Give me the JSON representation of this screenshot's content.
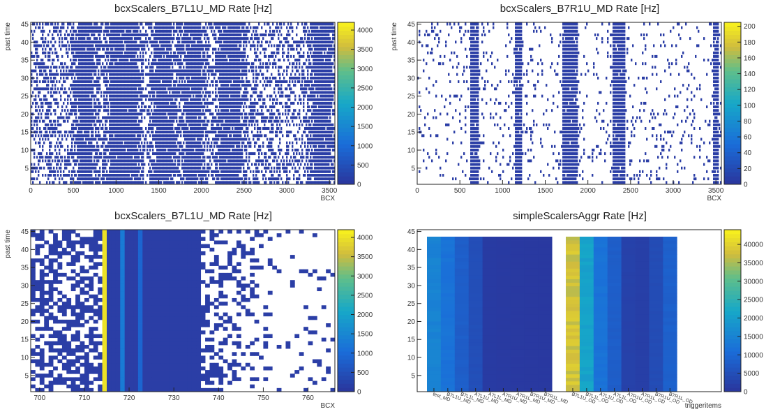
{
  "chart_data": [
    {
      "type": "heatmap",
      "title": "bcxScalers_B7L1U_MD Rate [Hz]",
      "xlabel": "BCX",
      "ylabel": "past time",
      "xlim": [
        0,
        3564
      ],
      "ylim": [
        1,
        45
      ],
      "x_ticks": [
        0,
        500,
        1000,
        1500,
        2000,
        2500,
        3000,
        3500
      ],
      "y_ticks": [
        5,
        10,
        15,
        20,
        25,
        30,
        35,
        40,
        45
      ],
      "z_ticks": [
        0,
        500,
        1000,
        1500,
        2000,
        2500,
        3000,
        3500,
        4000
      ],
      "zlim": [
        0,
        4200
      ],
      "filled_bcx_bands": [
        [
          560,
          720
        ],
        [
          930,
          1240
        ],
        [
          1470,
          1650
        ],
        [
          1820,
          2000
        ],
        [
          2230,
          2450
        ],
        [
          3320,
          3520
        ]
      ],
      "background_occupancy": 0.45
    },
    {
      "type": "heatmap",
      "title": "bcxScalers_B7R1U_MD Rate [Hz]",
      "xlabel": "BCX",
      "ylabel": "past time",
      "xlim": [
        0,
        3564
      ],
      "ylim": [
        1,
        45
      ],
      "x_ticks": [
        0,
        500,
        1000,
        1500,
        2000,
        2500,
        3000,
        3500
      ],
      "y_ticks": [
        5,
        10,
        15,
        20,
        25,
        30,
        35,
        40,
        45
      ],
      "z_ticks": [
        0,
        20,
        40,
        60,
        80,
        100,
        120,
        140,
        160,
        180,
        200
      ],
      "zlim": [
        0,
        205
      ],
      "filled_bcx_bands": [
        [
          620,
          720
        ],
        [
          1150,
          1230
        ],
        [
          1700,
          1880
        ],
        [
          2290,
          2440
        ],
        [
          3460,
          3530
        ]
      ],
      "background_occupancy": 0.08
    },
    {
      "type": "heatmap",
      "title": "bcxScalers_B7L1U_MD Rate [Hz]",
      "xlabel": "BCX",
      "ylabel": "past time",
      "xlim": [
        698,
        766
      ],
      "ylim": [
        1,
        45
      ],
      "x_ticks": [
        700,
        710,
        720,
        730,
        740,
        750,
        760
      ],
      "y_ticks": [
        5,
        10,
        15,
        20,
        25,
        30,
        35,
        40,
        45
      ],
      "z_ticks": [
        0,
        500,
        1000,
        1500,
        2000,
        2500,
        3000,
        3500,
        4000
      ],
      "zlim": [
        0,
        4200
      ],
      "hot_columns": [
        {
          "bcx": 714,
          "value": 4000
        },
        {
          "bcx": 718,
          "value": 1300
        },
        {
          "bcx": 722,
          "value": 900
        }
      ],
      "solid_range": [
        714,
        735
      ]
    },
    {
      "type": "heatmap",
      "title": "simpleScalersAggr Rate [Hz]",
      "xlabel": "triggeritems",
      "ylabel": "",
      "ylim": [
        1,
        45
      ],
      "y_ticks": [
        5,
        10,
        15,
        20,
        25,
        30,
        35,
        40,
        45
      ],
      "z_ticks": [
        0,
        5000,
        10000,
        15000,
        20000,
        25000,
        30000,
        35000,
        40000
      ],
      "zlim": [
        0,
        44000
      ],
      "categories": [
        "test_MD",
        "B7L1U_MD",
        "B7L1L_MD",
        "A7L1U_MD",
        "A7L1L_MD",
        "A7R1U_MD",
        "A7R1L_MD",
        "B7R1U_MD",
        "B7R1L_MD",
        "",
        "B7L1U_OD",
        "B7L1L_OD",
        "A7L1U_OD",
        "A7L1L_OD",
        "A7R1U_OD",
        "A7R1L_OD",
        "B7R1U_OD",
        "B7R1L_OD",
        ""
      ],
      "values": [
        15000,
        12000,
        8000,
        5000,
        1200,
        1000,
        900,
        800,
        700,
        null,
        38000,
        21000,
        12000,
        8000,
        2500,
        2000,
        4500,
        8500,
        null
      ]
    }
  ]
}
